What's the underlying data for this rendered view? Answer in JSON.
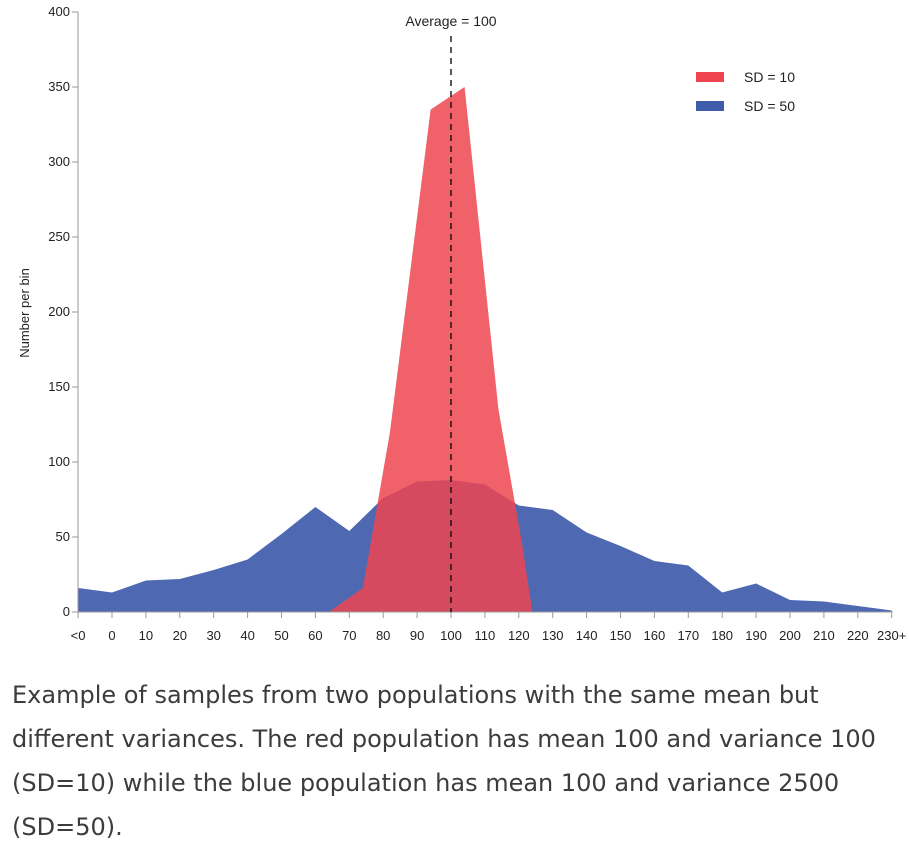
{
  "chart_data": {
    "type": "area",
    "x_labels": [
      "<0",
      "0",
      "10",
      "20",
      "30",
      "40",
      "50",
      "60",
      "70",
      "80",
      "90",
      "100",
      "110",
      "120",
      "130",
      "140",
      "150",
      "160",
      "170",
      "180",
      "190",
      "200",
      "210",
      "220",
      "230+"
    ],
    "ylabel": "Number per bin",
    "ylim": [
      0,
      400
    ],
    "y_ticks": [
      0,
      50,
      100,
      150,
      200,
      250,
      300,
      350,
      400
    ],
    "annotation": {
      "label": "Average = 100",
      "x": 100
    },
    "legend_position": "top-right",
    "series": [
      {
        "name": "SD = 50",
        "color": "#3f5bab",
        "points": [
          [
            -10,
            16
          ],
          [
            0,
            13
          ],
          [
            10,
            21
          ],
          [
            20,
            22
          ],
          [
            30,
            28
          ],
          [
            40,
            35
          ],
          [
            50,
            52
          ],
          [
            60,
            70
          ],
          [
            70,
            54
          ],
          [
            80,
            76
          ],
          [
            90,
            87
          ],
          [
            100,
            88
          ],
          [
            110,
            85
          ],
          [
            120,
            71
          ],
          [
            130,
            68
          ],
          [
            140,
            53
          ],
          [
            150,
            44
          ],
          [
            160,
            34
          ],
          [
            170,
            31
          ],
          [
            180,
            13
          ],
          [
            190,
            19
          ],
          [
            200,
            8
          ],
          [
            210,
            7
          ],
          [
            220,
            4
          ],
          [
            230,
            1
          ]
        ]
      },
      {
        "name": "SD = 10",
        "color": "#ee4550",
        "points": [
          [
            64,
            0
          ],
          [
            74,
            16
          ],
          [
            82,
            120
          ],
          [
            94,
            335
          ],
          [
            104,
            350
          ],
          [
            114,
            135
          ],
          [
            121,
            45
          ],
          [
            124,
            0
          ]
        ]
      }
    ]
  },
  "caption": "Example of samples from two populations with the same mean but different variances. The red population has mean 100 and variance 100 (SD=10) while the blue population has mean 100 and variance 2500 (SD=50)."
}
